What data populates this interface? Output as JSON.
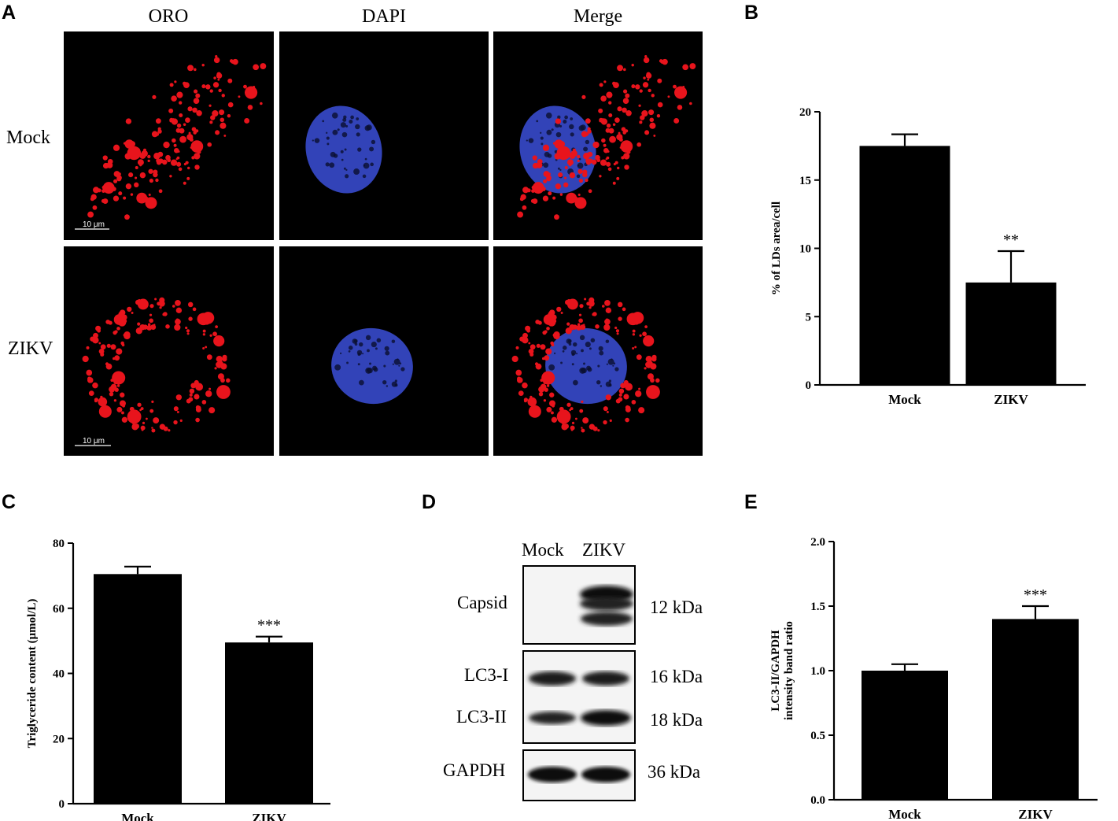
{
  "panels": {
    "A": {
      "letter": "A",
      "columns": [
        "ORO",
        "DAPI",
        "Merge"
      ],
      "rows": [
        "Mock",
        "ZIKV"
      ],
      "scale_bar": "10 μm",
      "colors": {
        "lipid": "#e8141c",
        "nucleus": "#3b4fd8",
        "background": "#000000"
      }
    },
    "B": {
      "letter": "B"
    },
    "C": {
      "letter": "C"
    },
    "D": {
      "letter": "D",
      "lanes": [
        "Mock",
        "ZIKV"
      ],
      "bands": [
        {
          "label": "Capsid",
          "kda": "12 kDa"
        },
        {
          "label": "LC3-I",
          "kda": "16 kDa"
        },
        {
          "label": "LC3-II",
          "kda": "18 kDa"
        },
        {
          "label": "GAPDH",
          "kda": "36 kDa"
        }
      ]
    },
    "E": {
      "letter": "E"
    }
  },
  "chart_data": [
    {
      "id": "B",
      "type": "bar",
      "categories": [
        "Mock",
        "ZIKV"
      ],
      "values": [
        17.5,
        7.5
      ],
      "errors": [
        0.85,
        2.3
      ],
      "significance": [
        "",
        "**"
      ],
      "ylabel": "% of LDs area/cell",
      "ylim": [
        0,
        20
      ],
      "yticks": [
        0,
        5,
        10,
        15,
        20
      ],
      "ytick_labels": [
        "0",
        "5",
        "10",
        "15",
        "20"
      ],
      "grid": false
    },
    {
      "id": "C",
      "type": "bar",
      "categories": [
        "Mock",
        "ZIKV"
      ],
      "values": [
        70.5,
        49.5
      ],
      "errors": [
        2.3,
        1.8
      ],
      "significance": [
        "",
        "***"
      ],
      "ylabel": "Triglyceride content (μmol/L)",
      "ylim": [
        0,
        80
      ],
      "yticks": [
        0,
        20,
        40,
        60,
        80
      ],
      "ytick_labels": [
        "0",
        "20",
        "40",
        "60",
        "80"
      ],
      "grid": false
    },
    {
      "id": "E",
      "type": "bar",
      "categories": [
        "Mock",
        "ZIKV"
      ],
      "values": [
        1.0,
        1.4
      ],
      "errors": [
        0.05,
        0.1
      ],
      "significance": [
        "",
        "***"
      ],
      "ylabel": "LC3-II/GAPDH intensity band ratio",
      "ylabel_lines": [
        "LC3-II/GAPDH",
        "intensity band ratio"
      ],
      "ylim": [
        0,
        2.0
      ],
      "yticks": [
        0,
        0.5,
        1.0,
        1.5,
        2.0
      ],
      "ytick_labels": [
        "0.0",
        "0.5",
        "1.0",
        "1.5",
        "2.0"
      ],
      "grid": false
    }
  ]
}
